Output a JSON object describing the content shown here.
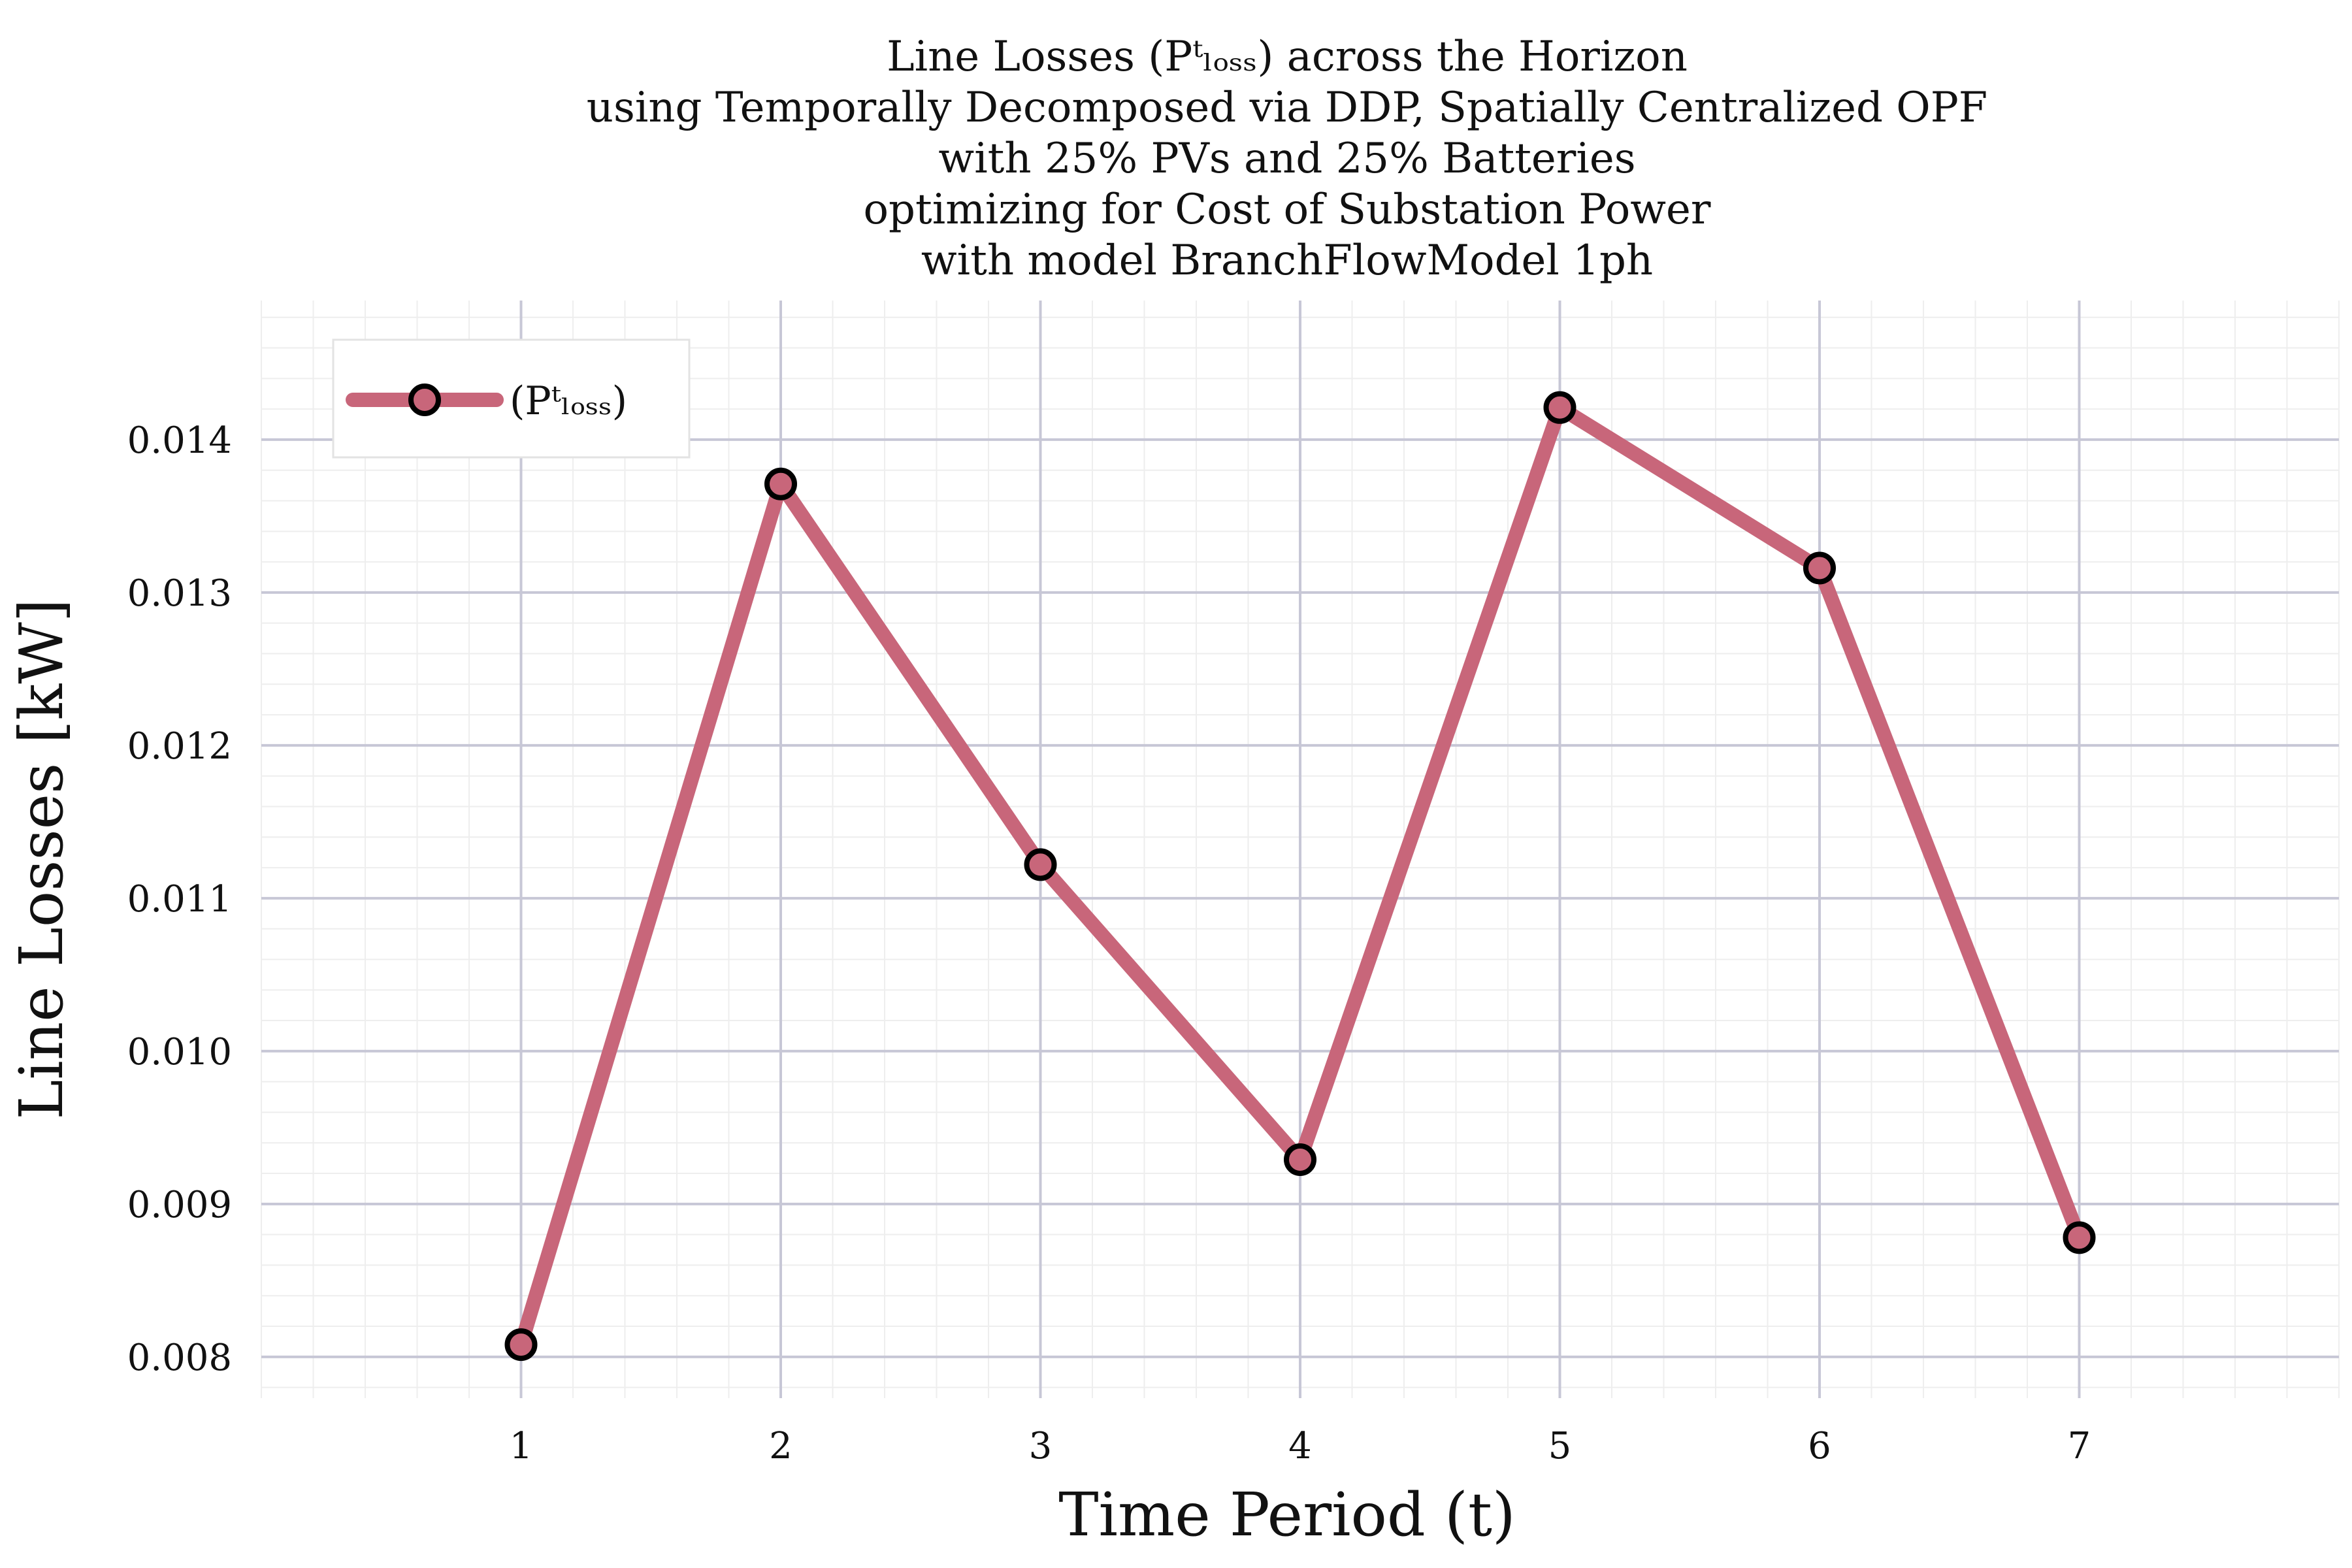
{
  "chart_data": {
    "type": "line",
    "title": [
      "Line Losses (Pᵗₗₒₛₛ) across the Horizon",
      "using Temporally Decomposed via DDP, Spatially Centralized OPF",
      "with 25% PVs and 25% Batteries",
      "optimizing for Cost of Substation Power",
      "with model BranchFlowModel 1ph"
    ],
    "xlabel": "Time Period (t)",
    "ylabel": "Line Losses [kW]",
    "x": [
      1,
      2,
      3,
      4,
      5,
      6,
      7
    ],
    "x_tick_labels": [
      "1",
      "2",
      "3",
      "4",
      "5",
      "6",
      "7"
    ],
    "y_tick_labels": [
      "0.008",
      "0.009",
      "0.010",
      "0.011",
      "0.012",
      "0.013",
      "0.014"
    ],
    "y_ticks": [
      0.008,
      0.009,
      0.01,
      0.011,
      0.012,
      0.013,
      0.014
    ],
    "xlim": [
      0,
      8
    ],
    "ylim": [
      0.00773,
      0.01491
    ],
    "series": [
      {
        "name": "(Pᵗₗₒₛₛ)",
        "values": [
          0.00808,
          0.01371,
          0.01122,
          0.00929,
          0.01421,
          0.01316,
          0.00878
        ],
        "line_color": "#c8667a",
        "marker_edge_color": "#000000"
      }
    ],
    "grid": true,
    "minor_grid": true,
    "legend_position": "top-left",
    "colors": {
      "major_grid": "#c7c7d6",
      "minor_grid": "#eeeeee",
      "background": "#ffffff"
    }
  }
}
